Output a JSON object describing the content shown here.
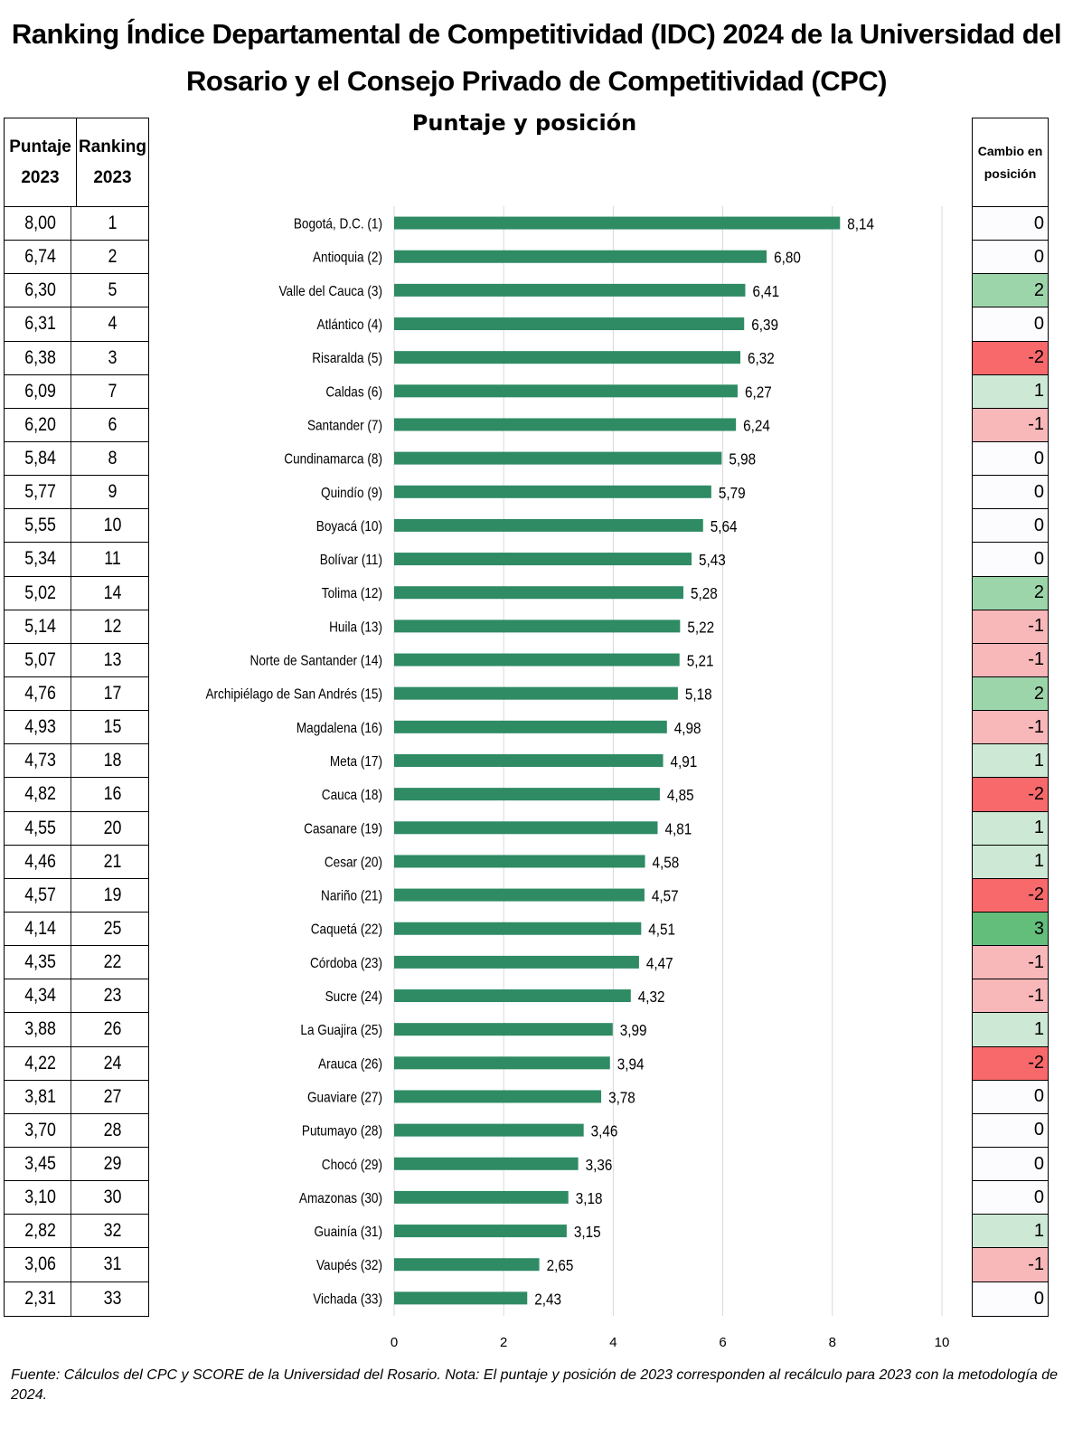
{
  "title": "Ranking Índice Departamental de Competitividad (IDC) 2024 de la Universidad del Rosario y el Consejo Privado de Competitividad (CPC)",
  "subtitle": "Puntaje y posición",
  "left_table": {
    "headers": [
      "Puntaje 2023",
      "Ranking 2023"
    ]
  },
  "right_table": {
    "header": "Cambio en posición"
  },
  "colors": {
    "bar": "#2e8b64",
    "change_0": "#fcfcff",
    "change_1": "#cde8d4",
    "change_2": "#9dd5ab",
    "change_3": "#63be7b",
    "change_-1": "#f8b7b9",
    "change_-2": "#f8696b"
  },
  "chart_data": {
    "type": "bar",
    "orientation": "horizontal",
    "xlim": [
      0,
      10
    ],
    "xticks": [
      0,
      2,
      4,
      6,
      8,
      10
    ],
    "grid": true,
    "categories": [
      "Bogotá, D.C. (1)",
      "Antioquia (2)",
      "Valle del Cauca (3)",
      "Atlántico (4)",
      "Risaralda (5)",
      "Caldas (6)",
      "Santander (7)",
      "Cundinamarca (8)",
      "Quindío (9)",
      "Boyacá (10)",
      "Bolívar (11)",
      "Tolima (12)",
      "Huila (13)",
      "Norte de Santander (14)",
      "Archipiélago de San Andrés (15)",
      "Magdalena (16)",
      "Meta (17)",
      "Cauca (18)",
      "Casanare (19)",
      "Cesar (20)",
      "Nariño (21)",
      "Caquetá (22)",
      "Córdoba (23)",
      "Sucre (24)",
      "La Guajira (25)",
      "Arauca (26)",
      "Guaviare (27)",
      "Putumayo (28)",
      "Chocó (29)",
      "Amazonas (30)",
      "Guainía (31)",
      "Vaupés (32)",
      "Vichada (33)"
    ],
    "values": [
      8.14,
      6.8,
      6.41,
      6.39,
      6.32,
      6.27,
      6.24,
      5.98,
      5.79,
      5.64,
      5.43,
      5.28,
      5.22,
      5.21,
      5.18,
      4.98,
      4.91,
      4.85,
      4.81,
      4.58,
      4.57,
      4.51,
      4.47,
      4.32,
      3.99,
      3.94,
      3.78,
      3.46,
      3.36,
      3.18,
      3.15,
      2.65,
      2.43
    ],
    "score_2023": [
      "8,00",
      "6,74",
      "6,30",
      "6,31",
      "6,38",
      "6,09",
      "6,20",
      "5,84",
      "5,77",
      "5,55",
      "5,34",
      "5,02",
      "5,14",
      "5,07",
      "4,76",
      "4,93",
      "4,73",
      "4,82",
      "4,55",
      "4,46",
      "4,57",
      "4,14",
      "4,35",
      "4,34",
      "3,88",
      "4,22",
      "3,81",
      "3,70",
      "3,45",
      "3,10",
      "2,82",
      "3,06",
      "2,31"
    ],
    "rank_2023": [
      1,
      2,
      5,
      4,
      3,
      7,
      6,
      8,
      9,
      10,
      11,
      14,
      12,
      13,
      17,
      15,
      18,
      16,
      20,
      21,
      19,
      25,
      22,
      23,
      26,
      24,
      27,
      28,
      29,
      30,
      32,
      31,
      33
    ],
    "change": [
      0,
      0,
      2,
      0,
      -2,
      1,
      -1,
      0,
      0,
      0,
      0,
      2,
      -1,
      -1,
      2,
      -1,
      1,
      -2,
      1,
      1,
      -2,
      3,
      -1,
      -1,
      1,
      -2,
      0,
      0,
      0,
      0,
      1,
      -1,
      0
    ]
  },
  "note": "Fuente: Cálculos del CPC y SCORE de la Universidad del Rosario. Nota: El puntaje y posición de 2023 corresponden al recálculo para 2023 con la metodología de 2024."
}
